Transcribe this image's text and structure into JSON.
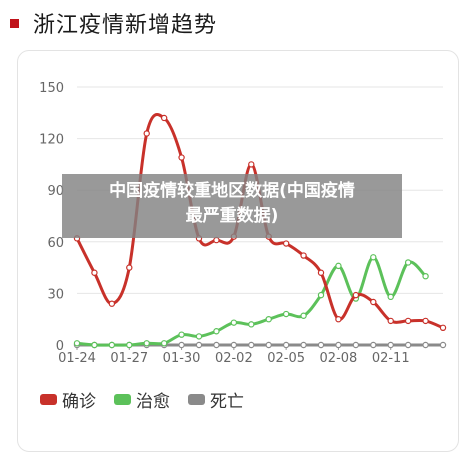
{
  "header": {
    "title": "浙江疫情新增趋势"
  },
  "overlay": {
    "line1": "中国疫情较重地区数据(中国疫情",
    "line2": "最严重数据)"
  },
  "colors": {
    "confirmed": "#c8312a",
    "cured": "#5cc15a",
    "deaths": "#8a8a8a",
    "accent": "#c0121a"
  },
  "chart_data": {
    "type": "line",
    "title": "浙江疫情新增趋势",
    "xlabel": "",
    "ylabel": "",
    "ylim": [
      0,
      150
    ],
    "yticks": [
      0,
      30,
      60,
      90,
      120,
      150
    ],
    "grid": true,
    "legend_position": "bottom",
    "x": [
      "01-24",
      "01-25",
      "01-26",
      "01-27",
      "01-28",
      "01-29",
      "01-30",
      "01-31",
      "02-01",
      "02-02",
      "02-03",
      "02-04",
      "02-05",
      "02-06",
      "02-07",
      "02-08",
      "02-09",
      "02-10",
      "02-11",
      "02-12",
      "02-13",
      "02-14"
    ],
    "xtick_labels": [
      "01-24",
      "01-27",
      "01-30",
      "02-02",
      "02-05",
      "02-08",
      "02-11"
    ],
    "series": [
      {
        "name": "确诊",
        "values": [
          62,
          42,
          24,
          45,
          123,
          132,
          109,
          62,
          61,
          63,
          105,
          63,
          59,
          52,
          42,
          15,
          29,
          25,
          14,
          14,
          14,
          10
        ]
      },
      {
        "name": "治愈",
        "values": [
          1,
          0,
          0,
          0,
          1,
          1,
          6,
          5,
          8,
          13,
          12,
          15,
          18,
          17,
          29,
          46,
          27,
          51,
          28,
          48,
          40,
          null
        ]
      },
      {
        "name": "死亡",
        "values": [
          0,
          0,
          0,
          0,
          0,
          0,
          0,
          0,
          0,
          0,
          0,
          0,
          0,
          0,
          0,
          0,
          0,
          0,
          0,
          0,
          0,
          0
        ]
      }
    ]
  }
}
